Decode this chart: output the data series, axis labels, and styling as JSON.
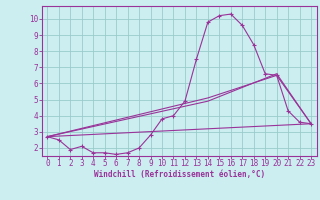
{
  "bg_color": "#cceef0",
  "grid_color": "#99cccc",
  "line_color": "#993399",
  "spine_color": "#993399",
  "xlabel": "Windchill (Refroidissement éolien,°C)",
  "xlim": [
    -0.5,
    23.5
  ],
  "ylim": [
    1.5,
    10.8
  ],
  "xticks": [
    0,
    1,
    2,
    3,
    4,
    5,
    6,
    7,
    8,
    9,
    10,
    11,
    12,
    13,
    14,
    15,
    16,
    17,
    18,
    19,
    20,
    21,
    22,
    23
  ],
  "yticks": [
    2,
    3,
    4,
    5,
    6,
    7,
    8,
    9,
    10
  ],
  "line1_x": [
    0,
    1,
    2,
    3,
    4,
    5,
    6,
    7,
    8,
    9,
    10,
    11,
    12,
    13,
    14,
    15,
    16,
    17,
    18,
    19,
    20,
    21,
    22,
    23
  ],
  "line1_y": [
    2.7,
    2.5,
    1.9,
    2.1,
    1.7,
    1.7,
    1.6,
    1.7,
    2.0,
    2.8,
    3.8,
    4.0,
    4.9,
    7.5,
    9.8,
    10.2,
    10.3,
    9.6,
    8.4,
    6.6,
    6.5,
    4.3,
    3.6,
    3.5
  ],
  "line2_x": [
    0,
    23
  ],
  "line2_y": [
    2.7,
    3.5
  ],
  "line3_x": [
    0,
    14,
    20,
    23
  ],
  "line3_y": [
    2.7,
    5.1,
    6.5,
    3.5
  ],
  "line4_x": [
    0,
    14,
    20,
    23
  ],
  "line4_y": [
    2.7,
    4.9,
    6.6,
    3.5
  ],
  "tick_fontsize": 5.5,
  "xlabel_fontsize": 5.5,
  "lw": 0.8,
  "marker_size": 2.5
}
